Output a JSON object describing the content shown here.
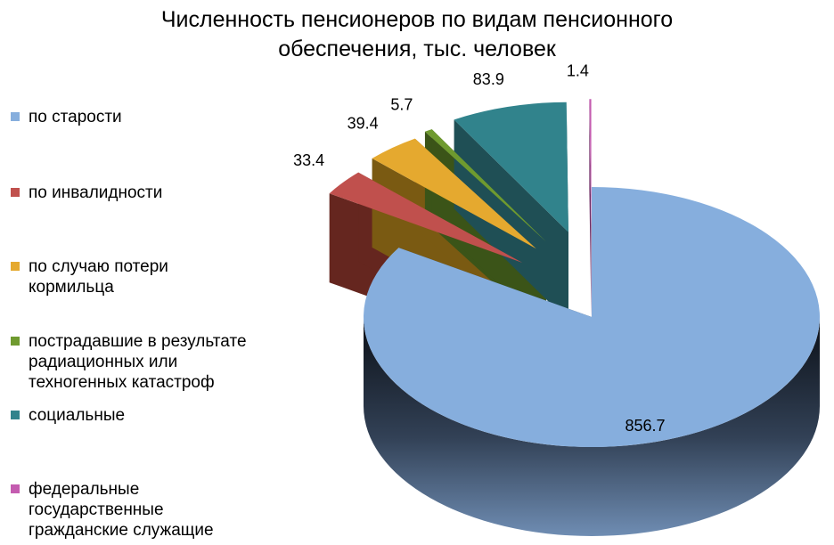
{
  "chart_data": {
    "type": "pie",
    "title": "Численность пенсионеров по видам пенсионного обеспечения, тыс. человек",
    "title_lines": [
      "Численность пенсионеров по видам пенсионного",
      "обеспечения, тыс. человек"
    ],
    "categories": [
      "по старости",
      "по инвалидности",
      "по случаю потери кормильца",
      "пострадавшие в результате радиационных или техногенных катастроф",
      "социальные",
      "федеральные государственные гражданские служащие"
    ],
    "legend_labels": [
      "по старости",
      "по инвалидности",
      "по случаю потери\nкормильца",
      "пострадавшие в результате\nрадиационных или\nтехногенных катастроф",
      "социальные",
      "федеральные\nгосударственные\nгражданские служащие"
    ],
    "values": [
      856.7,
      33.4,
      39.4,
      5.7,
      83.9,
      1.4
    ],
    "value_labels": [
      "856.7",
      "33.4",
      "39.4",
      "5.7",
      "83.9",
      "1.4"
    ],
    "colors": [
      "#86AEDD",
      "#C0504D",
      "#E5A92F",
      "#6F9A2F",
      "#31838C",
      "#C45CB0"
    ],
    "side_colors": [
      "#2E3D52",
      "#65261F",
      "#7A5A12",
      "#3B5418",
      "#1F4F55",
      "#6E2C63"
    ],
    "legend_position": "left",
    "style": "3d-exploded"
  }
}
